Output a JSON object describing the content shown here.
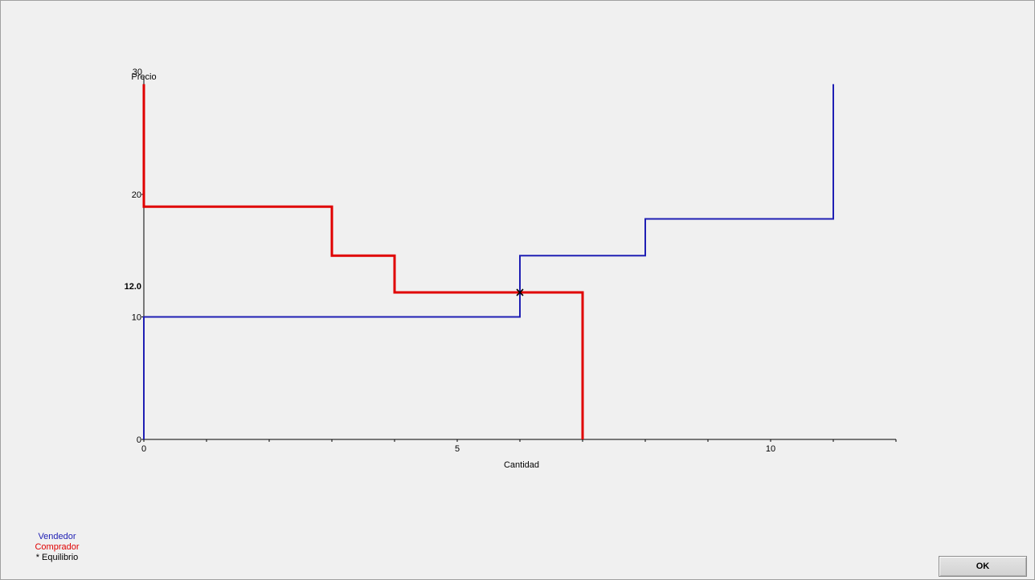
{
  "chart_data": {
    "type": "line",
    "xlabel": "Cantidad",
    "ylabel": "Precio",
    "xlim": [
      0,
      12
    ],
    "ylim": [
      0,
      29
    ],
    "x_ticks": [
      0,
      5,
      10
    ],
    "x_minor_step": 1,
    "y_ticks": [
      0,
      10,
      20
    ],
    "y_top_label": "30",
    "series": [
      {
        "name": "Vendedor",
        "color": "#1f1fb4",
        "points": [
          [
            0,
            0
          ],
          [
            0,
            10
          ],
          [
            6,
            10
          ],
          [
            6,
            15
          ],
          [
            8,
            15
          ],
          [
            8,
            18
          ],
          [
            11,
            18
          ],
          [
            11,
            29
          ]
        ]
      },
      {
        "name": "Comprador",
        "color": "#e00000",
        "points": [
          [
            0,
            29
          ],
          [
            0,
            19
          ],
          [
            3,
            19
          ],
          [
            3,
            15
          ],
          [
            4,
            15
          ],
          [
            4,
            12
          ],
          [
            7,
            12
          ],
          [
            7,
            0
          ]
        ]
      }
    ],
    "equilibrium": {
      "x": 6,
      "y": 12,
      "label": "12.0"
    },
    "legend": {
      "seller": "Vendedor",
      "buyer": "Comprador",
      "equilibrium": "* Equilibrio",
      "position": "bottom-left"
    }
  },
  "buttons": {
    "ok": "OK"
  }
}
